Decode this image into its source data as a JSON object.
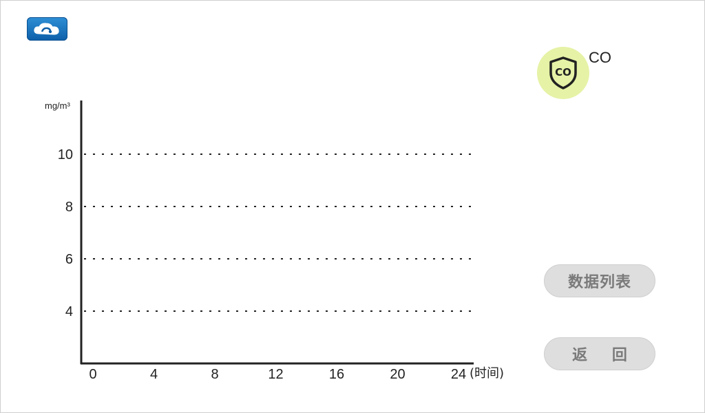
{
  "app": {
    "logo_icon": "cloud-icon"
  },
  "sensor": {
    "name": "CO",
    "badge_icon": "co-shield-icon",
    "badge_text": "CO"
  },
  "buttons": {
    "data_list": "数据列表",
    "back": "返 回"
  },
  "chart_data": {
    "type": "line",
    "ylabel": "mg/m³",
    "xlabel": "(时间)",
    "x_ticks": [
      "0",
      "4",
      "8",
      "12",
      "16",
      "20",
      "24"
    ],
    "y_ticks": [
      "4",
      "6",
      "8",
      "10"
    ],
    "x": [
      0,
      4,
      8,
      12,
      16,
      20,
      24
    ],
    "ylim": [
      2,
      12
    ],
    "xlim": [
      0,
      24
    ],
    "grid": true,
    "series": []
  }
}
